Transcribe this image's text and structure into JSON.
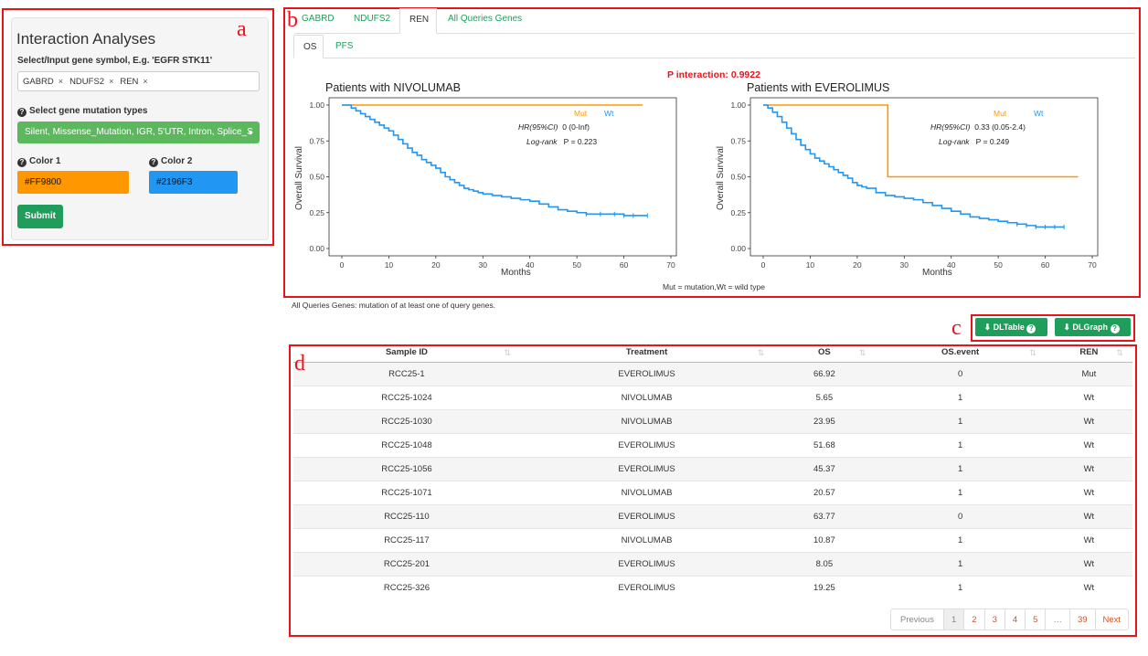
{
  "panel_letters": {
    "a": "a",
    "b": "b",
    "c": "c",
    "d": "d"
  },
  "form": {
    "title": "Interaction Analyses",
    "gene_label": "Select/Input gene symbol, E.g. 'EGFR STK11'",
    "genes": [
      "GABRD",
      "NDUFS2",
      "REN"
    ],
    "chip_remove": "×",
    "mutation_label": "Select gene mutation types",
    "mutation_value": "Silent, Missense_Mutation, IGR, 5'UTR, Intron, Splice_S",
    "color1_label": "Color 1",
    "color1_value": "#FF9800",
    "color2_label": "Color 2",
    "color2_value": "#2196F3",
    "submit_label": "Submit",
    "help_icon": "?",
    "dropdown_caret": "▾"
  },
  "tabs": {
    "genes": [
      {
        "label": "GABRD"
      },
      {
        "label": "NDUFS2"
      },
      {
        "label": "REN"
      },
      {
        "label": "All Queries Genes"
      }
    ],
    "active_gene": "REN",
    "survival": [
      {
        "label": "OS"
      },
      {
        "label": "PFS"
      }
    ],
    "active_survival": "OS"
  },
  "p_interaction": "P interaction: 0.9922",
  "legend_note": "Mut = mutation,Wt = wild type",
  "footnote": "All Queries Genes: mutation of at least one of query genes.",
  "colors": {
    "mut": "#ff9800",
    "wt": "#2196f3",
    "accent": "#1e9e5a",
    "panel_border": "#e8141b"
  },
  "chart_data": [
    {
      "type": "line",
      "title": "Patients with NIVOLUMAB",
      "xlabel": "Months",
      "ylabel": "Overall Survival",
      "xlim": [
        0,
        70
      ],
      "ylim": [
        0,
        1
      ],
      "x_ticks": [
        0,
        10,
        20,
        30,
        40,
        50,
        60,
        70
      ],
      "y_ticks": [
        "0.00",
        "0.25",
        "0.50",
        "0.75",
        "1.00"
      ],
      "legend": [
        "Mut",
        "Wt"
      ],
      "legend_position": "top-right",
      "hr_label": "HR(95%CI)",
      "hr_value": "0 (0-Inf)",
      "logrank_label": "Log-rank",
      "logrank_value": "P = 0.223",
      "series": [
        {
          "name": "Mut",
          "color": "#ff9800",
          "x": [
            0,
            64
          ],
          "y": [
            1.0,
            1.0
          ]
        },
        {
          "name": "Wt",
          "color": "#2196f3",
          "x": [
            0,
            1,
            2,
            3,
            4,
            5,
            6,
            7,
            8,
            9,
            10,
            11,
            12,
            13,
            14,
            15,
            16,
            17,
            18,
            19,
            20,
            21,
            22,
            23,
            24,
            25,
            26,
            27,
            28,
            29,
            30,
            32,
            34,
            36,
            38,
            40,
            42,
            44,
            46,
            48,
            50,
            52,
            55,
            58,
            60,
            62,
            65
          ],
          "y": [
            1.0,
            1.0,
            0.98,
            0.96,
            0.94,
            0.92,
            0.9,
            0.88,
            0.86,
            0.84,
            0.82,
            0.79,
            0.76,
            0.73,
            0.7,
            0.67,
            0.65,
            0.62,
            0.6,
            0.58,
            0.56,
            0.53,
            0.5,
            0.48,
            0.46,
            0.44,
            0.42,
            0.41,
            0.4,
            0.39,
            0.38,
            0.37,
            0.36,
            0.35,
            0.34,
            0.33,
            0.31,
            0.29,
            0.27,
            0.26,
            0.25,
            0.24,
            0.24,
            0.24,
            0.23,
            0.23,
            0.23
          ]
        }
      ]
    },
    {
      "type": "line",
      "title": "Patients with EVEROLIMUS",
      "xlabel": "Months",
      "ylabel": "Overall Survival",
      "xlim": [
        0,
        70
      ],
      "ylim": [
        0,
        1
      ],
      "x_ticks": [
        0,
        10,
        20,
        30,
        40,
        50,
        60,
        70
      ],
      "y_ticks": [
        "0.00",
        "0.25",
        "0.50",
        "0.75",
        "1.00"
      ],
      "legend": [
        "Mut",
        "Wt"
      ],
      "legend_position": "top-right",
      "hr_label": "HR(95%CI)",
      "hr_value": "0.33 (0.05-2.4)",
      "logrank_label": "Log-rank",
      "logrank_value": "P = 0.249",
      "series": [
        {
          "name": "Mut",
          "color": "#ff9800",
          "x": [
            0,
            26.5,
            26.5,
            67
          ],
          "y": [
            1.0,
            1.0,
            0.5,
            0.5
          ]
        },
        {
          "name": "Wt",
          "color": "#2196f3",
          "x": [
            0,
            1,
            2,
            3,
            4,
            5,
            6,
            7,
            8,
            9,
            10,
            11,
            12,
            13,
            14,
            15,
            16,
            17,
            18,
            19,
            20,
            21,
            22,
            24,
            26,
            28,
            30,
            32,
            34,
            36,
            38,
            40,
            42,
            44,
            46,
            48,
            50,
            52,
            54,
            56,
            58,
            60,
            62,
            64
          ],
          "y": [
            1.0,
            0.98,
            0.95,
            0.92,
            0.88,
            0.84,
            0.8,
            0.76,
            0.72,
            0.69,
            0.66,
            0.63,
            0.61,
            0.59,
            0.57,
            0.55,
            0.53,
            0.51,
            0.49,
            0.46,
            0.44,
            0.43,
            0.42,
            0.39,
            0.37,
            0.36,
            0.35,
            0.34,
            0.32,
            0.3,
            0.28,
            0.26,
            0.24,
            0.22,
            0.21,
            0.2,
            0.19,
            0.18,
            0.17,
            0.16,
            0.15,
            0.15,
            0.15,
            0.15
          ]
        }
      ]
    }
  ],
  "buttons": {
    "dl_table": "⬇ DLTable",
    "dl_graph": "⬇ DLGraph",
    "help": "?"
  },
  "table": {
    "sort_icon": "⇅",
    "columns": [
      "Sample ID",
      "Treatment",
      "OS",
      "OS.event",
      "REN"
    ],
    "rows": [
      [
        "RCC25-1",
        "EVEROLIMUS",
        "66.92",
        "0",
        "Mut"
      ],
      [
        "RCC25-1024",
        "NIVOLUMAB",
        "5.65",
        "1",
        "Wt"
      ],
      [
        "RCC25-1030",
        "NIVOLUMAB",
        "23.95",
        "1",
        "Wt"
      ],
      [
        "RCC25-1048",
        "EVEROLIMUS",
        "51.68",
        "1",
        "Wt"
      ],
      [
        "RCC25-1056",
        "EVEROLIMUS",
        "45.37",
        "1",
        "Wt"
      ],
      [
        "RCC25-1071",
        "NIVOLUMAB",
        "20.57",
        "1",
        "Wt"
      ],
      [
        "RCC25-110",
        "EVEROLIMUS",
        "63.77",
        "0",
        "Wt"
      ],
      [
        "RCC25-117",
        "NIVOLUMAB",
        "10.87",
        "1",
        "Wt"
      ],
      [
        "RCC25-201",
        "EVEROLIMUS",
        "8.05",
        "1",
        "Wt"
      ],
      [
        "RCC25-326",
        "EVEROLIMUS",
        "19.25",
        "1",
        "Wt"
      ]
    ]
  },
  "pagination": {
    "previous": "Previous",
    "pages": [
      "1",
      "2",
      "3",
      "4",
      "5",
      "…",
      "39"
    ],
    "next": "Next",
    "current": "1"
  }
}
